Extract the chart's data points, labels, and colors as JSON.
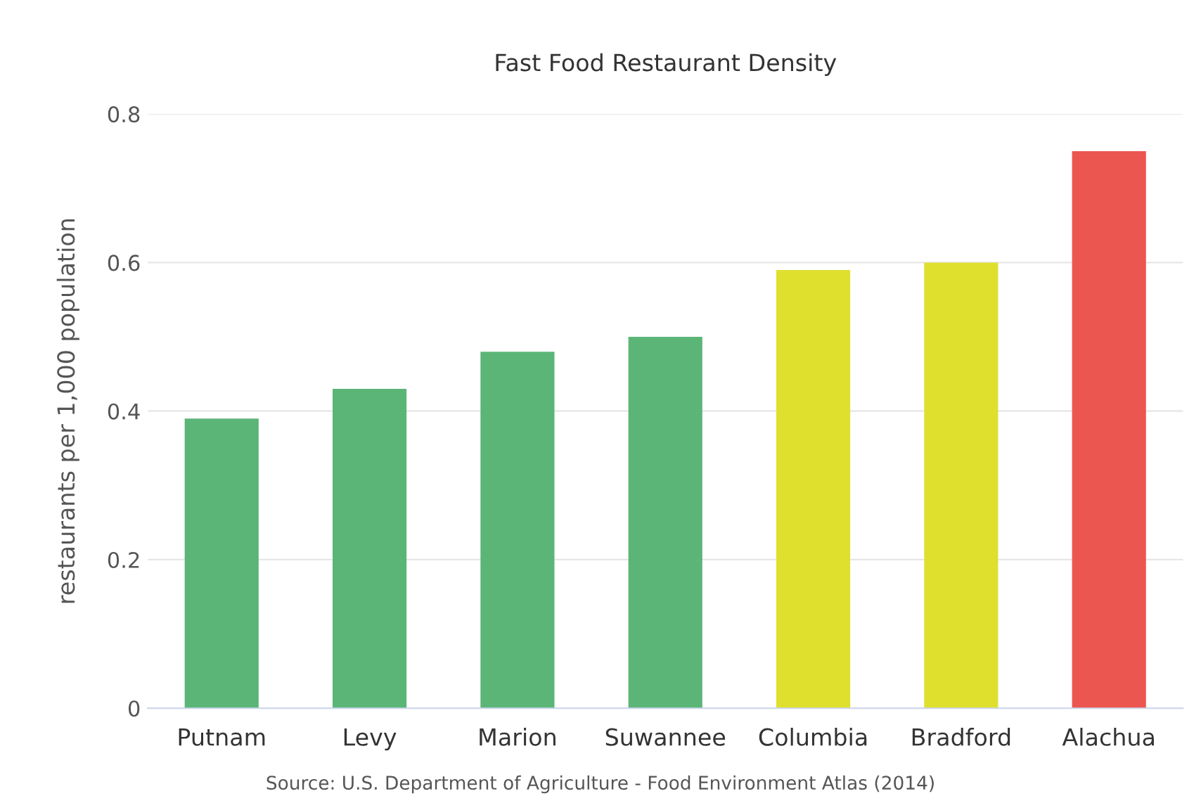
{
  "chart_data": {
    "type": "bar",
    "title": "Fast Food Restaurant Density",
    "ylabel": "restaurants per 1,000 population",
    "categories": [
      "Putnam",
      "Levy",
      "Marion",
      "Suwannee",
      "Columbia",
      "Bradford",
      "Alachua"
    ],
    "values": [
      0.39,
      0.43,
      0.48,
      0.5,
      0.59,
      0.6,
      0.75
    ],
    "colors": [
      "#5bb577",
      "#5bb577",
      "#5bb577",
      "#5bb577",
      "#dfdf2e",
      "#dfdf2e",
      "#ec5650"
    ],
    "ylim": [
      0,
      0.8
    ],
    "yticks": [
      0,
      0.2,
      0.4,
      0.6,
      0.8
    ],
    "grid": "y",
    "annotations": [
      "Source: U.S. Department of Agriculture - Food Environment Atlas (2014)"
    ]
  }
}
